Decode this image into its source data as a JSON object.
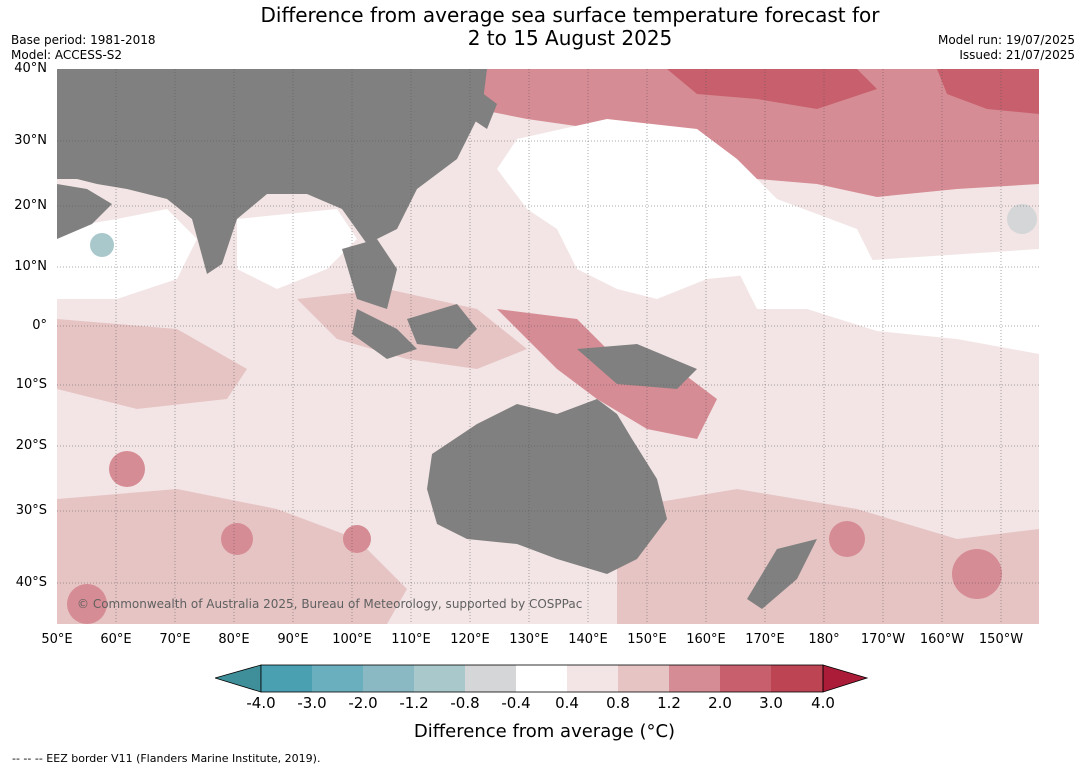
{
  "title": {
    "line1": "Difference from average sea surface temperature forecast for",
    "line2": "2 to 15 August 2025"
  },
  "meta": {
    "base_period": "Base period: 1981-2018",
    "model": "Model: ACCESS-S2",
    "model_run": "Model run: 19/07/2025",
    "issued": "Issued: 21/07/2025"
  },
  "axes": {
    "latitudes": [
      "40°N",
      "30°N",
      "20°N",
      "10°N",
      "0°",
      "10°S",
      "20°S",
      "30°S",
      "40°S"
    ],
    "longitudes": [
      "50°E",
      "60°E",
      "70°E",
      "80°E",
      "90°E",
      "100°E",
      "110°E",
      "120°E",
      "130°E",
      "140°E",
      "150°E",
      "160°E",
      "170°E",
      "180°",
      "170°W",
      "160°W",
      "150°W"
    ]
  },
  "colorbar": {
    "label": "Difference from average (°C)",
    "ticks": [
      "-4.0",
      "-3.0",
      "-2.0",
      "-1.2",
      "-0.8",
      "-0.4",
      "0.4",
      "0.8",
      "1.2",
      "2.0",
      "3.0",
      "4.0"
    ],
    "colors": [
      "#3e8f99",
      "#4a9fb0",
      "#6aafbd",
      "#8ab9c4",
      "#a9c8cc",
      "#d4d6d7",
      "#ffffff",
      "#f3e5e5",
      "#e6c4c4",
      "#d68c94",
      "#c7606c",
      "#bd4453",
      "#aa1c38"
    ]
  },
  "map_colors": {
    "land": "#808080",
    "ocean_neutral": "#ffffff",
    "anom_0_4": "#f3e5e5",
    "anom_0_8": "#e6c4c4",
    "anom_1_2": "#d68c94",
    "anom_2_0": "#c7606c",
    "cool_neg": "#a9c8cc"
  },
  "copyright": "© Commonwealth of Australia 2025, Bureau of Meteorology, supported by COSPPac",
  "footnote": "-- -- -- EEZ border V11 (Flanders Marine Institute, 2019)."
}
